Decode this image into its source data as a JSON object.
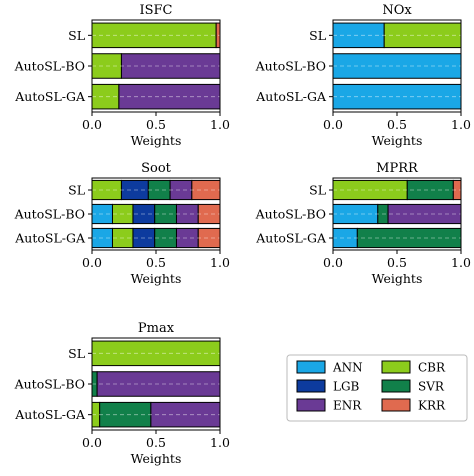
{
  "legend": {
    "placement": "bottom-right",
    "entries": [
      {
        "name": "ANN",
        "color": "#1aa7e6"
      },
      {
        "name": "CBR",
        "color": "#8ccc1c"
      },
      {
        "name": "LGB",
        "color": "#0d3b9e"
      },
      {
        "name": "SVR",
        "color": "#11804a"
      },
      {
        "name": "ENR",
        "color": "#6a3a95"
      },
      {
        "name": "KRR",
        "color": "#e06a4f"
      }
    ]
  },
  "chart_data": [
    {
      "type": "bar",
      "orientation": "horizontal",
      "stacked": true,
      "title": "ISFC",
      "xlabel": "Weights",
      "xlim": [
        0,
        1
      ],
      "xticks": [
        "0.0",
        "0.5",
        "1.0"
      ],
      "categories": [
        "SL",
        "AutoSL-BO",
        "AutoSL-GA"
      ],
      "series": [
        {
          "name": "ANN",
          "values": [
            0,
            0,
            0
          ]
        },
        {
          "name": "CBR",
          "values": [
            0.97,
            0.23,
            0.21
          ]
        },
        {
          "name": "LGB",
          "values": [
            0,
            0,
            0
          ]
        },
        {
          "name": "SVR",
          "values": [
            0,
            0,
            0
          ]
        },
        {
          "name": "ENR",
          "values": [
            0,
            0.77,
            0.79
          ]
        },
        {
          "name": "KRR",
          "values": [
            0.03,
            0,
            0
          ]
        }
      ]
    },
    {
      "type": "bar",
      "orientation": "horizontal",
      "stacked": true,
      "title": "NOx",
      "xlabel": "Weights",
      "xlim": [
        0,
        1
      ],
      "xticks": [
        "0.0",
        "0.5",
        "1.0"
      ],
      "categories": [
        "SL",
        "AutoSL-BO",
        "AutoSL-GA"
      ],
      "series": [
        {
          "name": "ANN",
          "values": [
            0.4,
            1.0,
            1.0
          ]
        },
        {
          "name": "CBR",
          "values": [
            0.6,
            0,
            0
          ]
        },
        {
          "name": "LGB",
          "values": [
            0,
            0,
            0
          ]
        },
        {
          "name": "SVR",
          "values": [
            0,
            0,
            0
          ]
        },
        {
          "name": "ENR",
          "values": [
            0,
            0,
            0
          ]
        },
        {
          "name": "KRR",
          "values": [
            0,
            0,
            0
          ]
        }
      ]
    },
    {
      "type": "bar",
      "orientation": "horizontal",
      "stacked": true,
      "title": "Soot",
      "xlabel": "Weights",
      "xlim": [
        0,
        1
      ],
      "xticks": [
        "0.0",
        "0.5",
        "1.0"
      ],
      "categories": [
        "SL",
        "AutoSL-BO",
        "AutoSL-GA"
      ],
      "series": [
        {
          "name": "ANN",
          "values": [
            0,
            0.16,
            0.16
          ]
        },
        {
          "name": "CBR",
          "values": [
            0.23,
            0.16,
            0.16
          ]
        },
        {
          "name": "LGB",
          "values": [
            0.21,
            0.17,
            0.17
          ]
        },
        {
          "name": "SVR",
          "values": [
            0.17,
            0.17,
            0.17
          ]
        },
        {
          "name": "ENR",
          "values": [
            0.17,
            0.17,
            0.17
          ]
        },
        {
          "name": "KRR",
          "values": [
            0.22,
            0.17,
            0.17
          ]
        }
      ]
    },
    {
      "type": "bar",
      "orientation": "horizontal",
      "stacked": true,
      "title": "MPRR",
      "xlabel": "Weights",
      "xlim": [
        0,
        1
      ],
      "xticks": [
        "0.0",
        "0.5",
        "1.0"
      ],
      "categories": [
        "SL",
        "AutoSL-BO",
        "AutoSL-GA"
      ],
      "series": [
        {
          "name": "ANN",
          "values": [
            0,
            0.35,
            0.19
          ]
        },
        {
          "name": "CBR",
          "values": [
            0.58,
            0,
            0
          ]
        },
        {
          "name": "LGB",
          "values": [
            0,
            0,
            0
          ]
        },
        {
          "name": "SVR",
          "values": [
            0.36,
            0.08,
            0.81
          ]
        },
        {
          "name": "ENR",
          "values": [
            0,
            0.57,
            0
          ]
        },
        {
          "name": "KRR",
          "values": [
            0.06,
            0,
            0
          ]
        }
      ]
    },
    {
      "type": "bar",
      "orientation": "horizontal",
      "stacked": true,
      "title": "Pmax",
      "xlabel": "Weights",
      "xlim": [
        0,
        1
      ],
      "xticks": [
        "0.0",
        "0.5",
        "1.0"
      ],
      "categories": [
        "SL",
        "AutoSL-BO",
        "AutoSL-GA"
      ],
      "series": [
        {
          "name": "ANN",
          "values": [
            0,
            0,
            0
          ]
        },
        {
          "name": "CBR",
          "values": [
            1.0,
            0,
            0.06
          ]
        },
        {
          "name": "LGB",
          "values": [
            0,
            0,
            0
          ]
        },
        {
          "name": "SVR",
          "values": [
            0,
            0.04,
            0.4
          ]
        },
        {
          "name": "ENR",
          "values": [
            0,
            0.96,
            0.54
          ]
        },
        {
          "name": "KRR",
          "values": [
            0,
            0,
            0
          ]
        }
      ]
    }
  ]
}
